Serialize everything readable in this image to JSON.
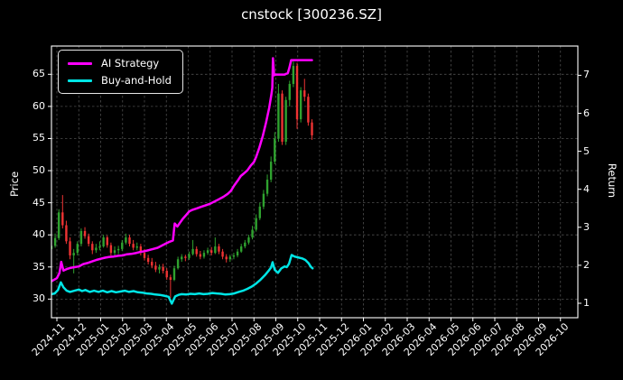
{
  "title": "cnstock [300236.SZ]",
  "colors": {
    "background": "#000000",
    "text": "#ffffff",
    "grid": "#4d4d4d",
    "axis_spine": "#ffffff",
    "candle_up": "#2fa22f",
    "candle_down": "#ee3333",
    "ai_strategy": "#ff00ff",
    "buy_and_hold": "#00e5e5"
  },
  "legend": {
    "items": [
      {
        "label": "AI Strategy",
        "color": "#ff00ff"
      },
      {
        "label": "Buy-and-Hold",
        "color": "#00e5e5"
      }
    ]
  },
  "chart_data": {
    "type": "candlestick+line",
    "title": "cnstock [300236.SZ]",
    "grid": true,
    "legend_position": "upper-left",
    "t_unit": "months since 2024-11 tick; x = 63 + 24.25*t px",
    "left_axis": {
      "label": "Price",
      "ticks": [
        30,
        35,
        40,
        45,
        50,
        55,
        60,
        65
      ],
      "range": [
        27.1,
        69.4
      ]
    },
    "right_axis": {
      "label": "Return",
      "ticks": [
        1,
        2,
        3,
        4,
        5,
        6,
        7
      ],
      "range": [
        0.62,
        7.77
      ]
    },
    "x_axis": {
      "tick_labels": [
        "2024-11",
        "2024-12",
        "2025-01",
        "2025-02",
        "2025-03",
        "2025-04",
        "2025-05",
        "2025-06",
        "2025-07",
        "2025-08",
        "2025-09",
        "2025-10",
        "2025-11",
        "2025-12",
        "2026-01",
        "2026-02",
        "2026-03",
        "2026-04",
        "2026-05",
        "2026-06",
        "2026-07",
        "2026-08",
        "2026-09",
        "2026-10"
      ],
      "label_rotation_deg": 45
    },
    "candles_ohlc_format": "[t, open, high, low, close] (price, left axis)",
    "candles_ohlc": [
      [
        -0.25,
        37.8,
        39.3,
        37.2,
        38.3
      ],
      [
        -0.08,
        38.3,
        40.2,
        38.0,
        39.5
      ],
      [
        0.09,
        39.5,
        44.0,
        39.2,
        43.5
      ],
      [
        0.26,
        43.5,
        46.2,
        41.0,
        41.5
      ],
      [
        0.43,
        41.5,
        42.2,
        38.6,
        39.0
      ],
      [
        0.6,
        39.0,
        39.6,
        36.2,
        36.8
      ],
      [
        0.77,
        36.8,
        37.8,
        34.0,
        37.2
      ],
      [
        0.94,
        37.2,
        39.0,
        36.8,
        38.6
      ],
      [
        1.11,
        38.6,
        41.0,
        38.2,
        40.6
      ],
      [
        1.28,
        40.6,
        41.2,
        39.4,
        39.8
      ],
      [
        1.45,
        39.8,
        40.2,
        38.2,
        38.6
      ],
      [
        1.62,
        38.6,
        39.0,
        37.0,
        37.6
      ],
      [
        1.79,
        37.6,
        38.6,
        37.2,
        38.0
      ],
      [
        1.96,
        38.0,
        39.0,
        37.6,
        38.2
      ],
      [
        2.13,
        38.2,
        40.0,
        38.0,
        39.6
      ],
      [
        2.3,
        39.6,
        39.9,
        38.0,
        38.4
      ],
      [
        2.47,
        38.4,
        38.8,
        36.8,
        37.2
      ],
      [
        2.64,
        37.2,
        38.2,
        36.8,
        37.6
      ],
      [
        2.81,
        37.6,
        38.3,
        37.0,
        37.8
      ],
      [
        2.98,
        37.8,
        39.2,
        37.5,
        38.8
      ],
      [
        3.15,
        38.8,
        40.2,
        38.5,
        39.6
      ],
      [
        3.32,
        39.6,
        40.0,
        38.2,
        38.6
      ],
      [
        3.49,
        38.6,
        39.2,
        37.6,
        38.0
      ],
      [
        3.66,
        38.0,
        38.8,
        37.6,
        38.2
      ],
      [
        3.83,
        38.2,
        38.6,
        36.8,
        37.2
      ],
      [
        4.0,
        37.2,
        37.8,
        36.0,
        36.4
      ],
      [
        4.17,
        36.4,
        36.9,
        35.4,
        35.8
      ],
      [
        4.34,
        35.8,
        36.4,
        34.8,
        35.2
      ],
      [
        4.51,
        35.2,
        35.8,
        34.2,
        34.6
      ],
      [
        4.68,
        34.6,
        35.4,
        34.0,
        35.0
      ],
      [
        4.85,
        35.0,
        35.5,
        34.0,
        34.4
      ],
      [
        5.02,
        34.4,
        34.8,
        33.0,
        33.4
      ],
      [
        5.19,
        33.4,
        33.8,
        30.2,
        33.0
      ],
      [
        5.36,
        33.0,
        35.2,
        32.8,
        34.8
      ],
      [
        5.53,
        34.8,
        36.6,
        34.6,
        36.2
      ],
      [
        5.7,
        36.2,
        37.0,
        35.8,
        36.6
      ],
      [
        5.87,
        36.6,
        36.9,
        35.9,
        36.4
      ],
      [
        6.04,
        36.4,
        37.4,
        36.1,
        37.0
      ],
      [
        6.21,
        37.0,
        39.2,
        36.8,
        37.8
      ],
      [
        6.38,
        37.8,
        38.2,
        36.6,
        37.0
      ],
      [
        6.55,
        37.0,
        37.5,
        36.2,
        36.6
      ],
      [
        6.72,
        36.6,
        37.6,
        36.3,
        37.2
      ],
      [
        6.89,
        37.2,
        38.0,
        36.9,
        37.6
      ],
      [
        7.06,
        37.6,
        38.1,
        36.8,
        37.2
      ],
      [
        7.23,
        37.2,
        39.6,
        37.0,
        38.2
      ],
      [
        7.4,
        38.2,
        38.6,
        37.0,
        37.4
      ],
      [
        7.57,
        37.4,
        37.8,
        36.2,
        36.6
      ],
      [
        7.74,
        36.6,
        37.0,
        35.7,
        36.2
      ],
      [
        7.91,
        36.2,
        36.9,
        35.8,
        36.6
      ],
      [
        8.08,
        36.6,
        37.2,
        36.2,
        36.8
      ],
      [
        8.25,
        36.8,
        37.8,
        36.5,
        37.4
      ],
      [
        8.42,
        37.4,
        38.6,
        37.2,
        38.2
      ],
      [
        8.59,
        38.2,
        39.2,
        37.9,
        38.8
      ],
      [
        8.76,
        38.8,
        40.0,
        38.5,
        39.6
      ],
      [
        8.93,
        39.6,
        41.4,
        39.3,
        40.8
      ],
      [
        9.1,
        40.8,
        43.2,
        40.5,
        42.6
      ],
      [
        9.27,
        42.6,
        45.0,
        42.3,
        44.4
      ],
      [
        9.44,
        44.4,
        47.0,
        44.0,
        46.4
      ],
      [
        9.61,
        46.4,
        49.4,
        46.0,
        48.6
      ],
      [
        9.78,
        48.6,
        52.2,
        48.2,
        51.4
      ],
      [
        9.95,
        51.4,
        56.0,
        51.0,
        55.0
      ],
      [
        10.12,
        55.0,
        63.5,
        54.5,
        62.0
      ],
      [
        10.29,
        62.0,
        62.5,
        54.0,
        54.5
      ],
      [
        10.46,
        54.5,
        61.5,
        54.0,
        61.0
      ],
      [
        10.63,
        61.0,
        64.0,
        60.0,
        63.5
      ],
      [
        10.8,
        63.5,
        67.0,
        63.0,
        66.3
      ],
      [
        10.97,
        66.3,
        66.8,
        56.5,
        58.0
      ],
      [
        11.14,
        58.0,
        63.0,
        57.5,
        62.5
      ],
      [
        11.31,
        62.5,
        64.3,
        60.8,
        61.5
      ],
      [
        11.48,
        61.5,
        62.0,
        57.0,
        57.5
      ],
      [
        11.65,
        57.5,
        58.0,
        54.8,
        55.5
      ]
    ],
    "series": [
      {
        "name": "AI Strategy",
        "axis": "return",
        "color": "#ff00ff",
        "points": [
          [
            -0.25,
            1.58
          ],
          [
            0.0,
            1.66
          ],
          [
            0.12,
            1.8
          ],
          [
            0.2,
            2.09
          ],
          [
            0.3,
            1.86
          ],
          [
            0.45,
            1.9
          ],
          [
            0.6,
            1.93
          ],
          [
            0.8,
            1.95
          ],
          [
            1.0,
            1.97
          ],
          [
            1.2,
            2.03
          ],
          [
            1.4,
            2.06
          ],
          [
            1.6,
            2.1
          ],
          [
            1.8,
            2.14
          ],
          [
            2.0,
            2.17
          ],
          [
            2.2,
            2.2
          ],
          [
            2.4,
            2.22
          ],
          [
            2.6,
            2.23
          ],
          [
            2.8,
            2.25
          ],
          [
            3.0,
            2.26
          ],
          [
            3.2,
            2.29
          ],
          [
            3.4,
            2.3
          ],
          [
            3.6,
            2.32
          ],
          [
            3.8,
            2.35
          ],
          [
            4.0,
            2.37
          ],
          [
            4.2,
            2.4
          ],
          [
            4.4,
            2.43
          ],
          [
            4.6,
            2.46
          ],
          [
            4.8,
            2.52
          ],
          [
            5.0,
            2.58
          ],
          [
            5.15,
            2.62
          ],
          [
            5.3,
            2.65
          ],
          [
            5.38,
            3.1
          ],
          [
            5.5,
            3.02
          ],
          [
            5.62,
            3.12
          ],
          [
            5.75,
            3.22
          ],
          [
            5.9,
            3.32
          ],
          [
            6.05,
            3.42
          ],
          [
            6.2,
            3.46
          ],
          [
            6.4,
            3.5
          ],
          [
            6.6,
            3.54
          ],
          [
            6.8,
            3.58
          ],
          [
            7.0,
            3.62
          ],
          [
            7.2,
            3.68
          ],
          [
            7.4,
            3.74
          ],
          [
            7.6,
            3.8
          ],
          [
            7.8,
            3.88
          ],
          [
            7.95,
            3.96
          ],
          [
            8.1,
            4.1
          ],
          [
            8.25,
            4.22
          ],
          [
            8.4,
            4.35
          ],
          [
            8.55,
            4.42
          ],
          [
            8.7,
            4.5
          ],
          [
            8.85,
            4.62
          ],
          [
            9.0,
            4.72
          ],
          [
            9.1,
            4.85
          ],
          [
            9.25,
            5.1
          ],
          [
            9.4,
            5.4
          ],
          [
            9.55,
            5.75
          ],
          [
            9.7,
            6.15
          ],
          [
            9.8,
            6.5
          ],
          [
            9.84,
            6.68
          ],
          [
            9.87,
            7.45
          ],
          [
            9.92,
            7.0
          ],
          [
            10.0,
            7.02
          ],
          [
            10.2,
            7.02
          ],
          [
            10.4,
            7.02
          ],
          [
            10.55,
            7.06
          ],
          [
            10.62,
            7.2
          ],
          [
            10.7,
            7.4
          ],
          [
            10.9,
            7.4
          ],
          [
            11.1,
            7.4
          ],
          [
            11.3,
            7.4
          ],
          [
            11.5,
            7.4
          ],
          [
            11.65,
            7.4
          ]
        ]
      },
      {
        "name": "Buy-and-Hold",
        "axis": "return",
        "color": "#00e5e5",
        "points": [
          [
            -0.25,
            1.24
          ],
          [
            -0.1,
            1.26
          ],
          [
            0.05,
            1.35
          ],
          [
            0.18,
            1.55
          ],
          [
            0.3,
            1.42
          ],
          [
            0.45,
            1.33
          ],
          [
            0.6,
            1.3
          ],
          [
            0.8,
            1.33
          ],
          [
            1.0,
            1.36
          ],
          [
            1.15,
            1.32
          ],
          [
            1.3,
            1.35
          ],
          [
            1.5,
            1.3
          ],
          [
            1.7,
            1.33
          ],
          [
            1.9,
            1.3
          ],
          [
            2.1,
            1.33
          ],
          [
            2.3,
            1.29
          ],
          [
            2.5,
            1.32
          ],
          [
            2.7,
            1.29
          ],
          [
            2.9,
            1.31
          ],
          [
            3.1,
            1.33
          ],
          [
            3.3,
            1.3
          ],
          [
            3.5,
            1.32
          ],
          [
            3.7,
            1.29
          ],
          [
            3.9,
            1.28
          ],
          [
            4.1,
            1.26
          ],
          [
            4.3,
            1.25
          ],
          [
            4.5,
            1.23
          ],
          [
            4.7,
            1.22
          ],
          [
            4.9,
            1.2
          ],
          [
            5.1,
            1.17
          ],
          [
            5.25,
            0.99
          ],
          [
            5.4,
            1.18
          ],
          [
            5.55,
            1.22
          ],
          [
            5.7,
            1.24
          ],
          [
            5.9,
            1.23
          ],
          [
            6.1,
            1.25
          ],
          [
            6.3,
            1.24
          ],
          [
            6.5,
            1.26
          ],
          [
            6.7,
            1.24
          ],
          [
            6.9,
            1.25
          ],
          [
            7.1,
            1.27
          ],
          [
            7.3,
            1.26
          ],
          [
            7.5,
            1.25
          ],
          [
            7.7,
            1.23
          ],
          [
            7.9,
            1.24
          ],
          [
            8.1,
            1.26
          ],
          [
            8.3,
            1.3
          ],
          [
            8.5,
            1.33
          ],
          [
            8.7,
            1.38
          ],
          [
            8.9,
            1.44
          ],
          [
            9.1,
            1.52
          ],
          [
            9.3,
            1.62
          ],
          [
            9.5,
            1.74
          ],
          [
            9.65,
            1.84
          ],
          [
            9.78,
            1.94
          ],
          [
            9.85,
            2.08
          ],
          [
            9.95,
            1.88
          ],
          [
            10.1,
            1.8
          ],
          [
            10.25,
            1.92
          ],
          [
            10.4,
            1.97
          ],
          [
            10.5,
            1.95
          ],
          [
            10.6,
            2.04
          ],
          [
            10.72,
            2.27
          ],
          [
            10.85,
            2.23
          ],
          [
            11.0,
            2.21
          ],
          [
            11.2,
            2.18
          ],
          [
            11.35,
            2.14
          ],
          [
            11.5,
            2.05
          ],
          [
            11.6,
            1.96
          ],
          [
            11.68,
            1.92
          ]
        ]
      }
    ]
  }
}
